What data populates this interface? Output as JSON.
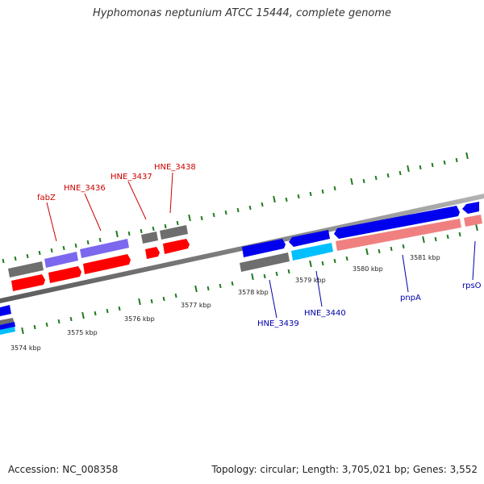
{
  "title": "Hyphomonas neptunium ATCC 15444, complete genome",
  "footer": {
    "accession": "Accession: NC_008358",
    "stats": "Topology: circular; Length: 3,705,021 bp; Genes: 3,552"
  },
  "colors": {
    "background": "#ffffff",
    "backbone": "#7f7f7f",
    "tick": "#1f7a1f",
    "gene_red": "#ff0000",
    "gene_blue": "#0000ee",
    "gene_purple": "#7b68ee",
    "gene_gray": "#6e6e6e",
    "gene_cyan": "#00bfff",
    "gene_salmon": "#f08080",
    "label_red": "#cc0000",
    "label_blue": "#0000aa"
  },
  "scale_labels": {
    "k3574": "3574 kbp",
    "k3575": "3575 kbp",
    "k3576": "3576 kbp",
    "k3577": "3577 kbp",
    "k3578": "3578 kbp",
    "k3579": "3579 kbp",
    "k3580": "3580 kbp",
    "k3581": "3581 kbp"
  },
  "gene_labels": {
    "fabZ": "fabZ",
    "hne3436": "HNE_3436",
    "hne3437": "HNE_3437",
    "hne3438": "HNE_3438",
    "hne3439": "HNE_3439",
    "hne3440": "HNE_3440",
    "pnpA": "pnpA",
    "rpsO": "rpsO"
  }
}
